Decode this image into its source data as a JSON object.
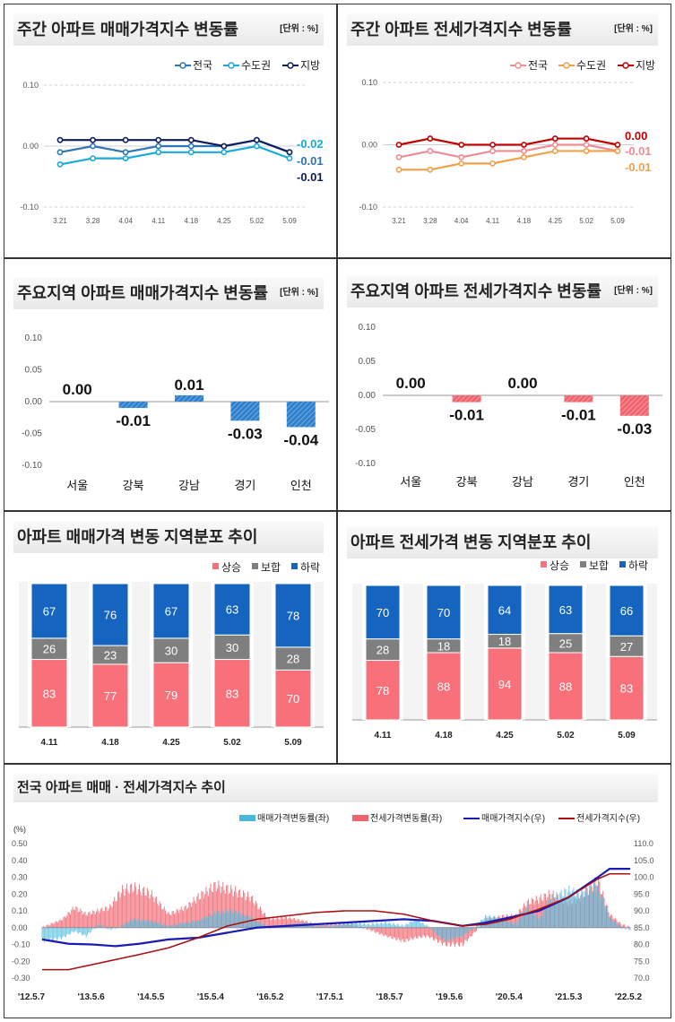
{
  "panels": {
    "p1": {
      "title": "주간 아파트 매매가격지수 변동률",
      "unit": "[단위 : %]"
    },
    "p2": {
      "title": "주간 아파트 전세가격지수 변동률",
      "unit": "[단위 : %]"
    },
    "p3": {
      "title": "주요지역 아파트 매매가격지수 변동률",
      "unit": "[단위 : %]"
    },
    "p4": {
      "title": "주요지역 아파트 전세가격지수 변동률",
      "unit": "[단위 : %]"
    },
    "p5": {
      "title": "아파트 매매가격 변동 지역분포 추이"
    },
    "p6": {
      "title": "아파트 전세가격 변동 지역분포 추이"
    },
    "p7": {
      "title": "전국 아파트 매매 · 전세가격지수 추이"
    }
  },
  "chart_data": [
    {
      "id": "weekly_sale",
      "type": "line",
      "title": "주간 아파트 매매가격지수 변동률",
      "unit": "[단위 : %]",
      "categories": [
        "3.21",
        "3.28",
        "4.04",
        "4.11",
        "4.18",
        "4.25",
        "5.02",
        "5.09"
      ],
      "ylim": [
        -0.1,
        0.1
      ],
      "yticks": [
        "0.10",
        "0.00",
        "-0.10"
      ],
      "series": [
        {
          "name": "전국",
          "color": "#2e75b6",
          "values": [
            -0.01,
            0.0,
            -0.01,
            0.0,
            0.0,
            0.0,
            0.01,
            -0.01
          ],
          "end_label": "-0.01"
        },
        {
          "name": "수도권",
          "color": "#19a9dc",
          "values": [
            -0.03,
            -0.02,
            -0.02,
            -0.01,
            -0.01,
            -0.01,
            0.0,
            -0.02
          ],
          "end_label": "-0.02"
        },
        {
          "name": "지방",
          "color": "#0d1f5c",
          "values": [
            0.01,
            0.01,
            0.01,
            0.01,
            0.01,
            0.0,
            0.01,
            -0.01
          ],
          "end_label": "-0.01"
        }
      ]
    },
    {
      "id": "weekly_jeonse",
      "type": "line",
      "title": "주간 아파트 전세가격지수 변동률",
      "unit": "[단위 : %]",
      "categories": [
        "3.21",
        "3.28",
        "4.04",
        "4.11",
        "4.18",
        "4.25",
        "5.02",
        "5.09"
      ],
      "ylim": [
        -0.1,
        0.1
      ],
      "yticks": [
        "0.10",
        "0.00",
        "-0.10"
      ],
      "series": [
        {
          "name": "전국",
          "color": "#f08a94",
          "values": [
            -0.02,
            -0.01,
            -0.02,
            -0.01,
            -0.01,
            0.0,
            0.0,
            -0.01
          ],
          "end_label": "-0.01"
        },
        {
          "name": "수도권",
          "color": "#f0a04b",
          "values": [
            -0.04,
            -0.04,
            -0.03,
            -0.03,
            -0.02,
            -0.01,
            -0.01,
            -0.01
          ],
          "end_label": "-0.01"
        },
        {
          "name": "지방",
          "color": "#c00000",
          "values": [
            0.0,
            0.01,
            0.0,
            0.0,
            0.0,
            0.01,
            0.01,
            0.0
          ],
          "end_label": "0.00"
        }
      ]
    },
    {
      "id": "region_sale",
      "type": "bar",
      "title": "주요지역 아파트 매매가격지수 변동률",
      "unit": "[단위 : %]",
      "categories": [
        "서울",
        "강북",
        "강남",
        "경기",
        "인천"
      ],
      "values": [
        0.0,
        -0.01,
        0.01,
        -0.03,
        -0.04
      ],
      "labels": [
        "0.00",
        "-0.01",
        "0.01",
        "-0.03",
        "-0.04"
      ],
      "ylim": [
        -0.1,
        0.1
      ],
      "yticks": [
        "0.10",
        "0.05",
        "0.00",
        "-0.05",
        "-0.10"
      ],
      "color": "#2e80cc"
    },
    {
      "id": "region_jeonse",
      "type": "bar",
      "title": "주요지역 아파트 전세가격지수 변동률",
      "unit": "[단위 : %]",
      "categories": [
        "서울",
        "강북",
        "강남",
        "경기",
        "인천"
      ],
      "values": [
        0.0,
        -0.01,
        0.0,
        -0.01,
        -0.03
      ],
      "labels": [
        "0.00",
        "-0.01",
        "0.00",
        "-0.01",
        "-0.03"
      ],
      "ylim": [
        -0.1,
        0.1
      ],
      "yticks": [
        "0.10",
        "0.05",
        "0.00",
        "-0.05",
        "-0.10"
      ],
      "color": "#f0646e"
    },
    {
      "id": "dist_sale",
      "type": "bar",
      "stacked": true,
      "title": "아파트 매매가격 변동 지역분포 추이",
      "categories": [
        "4.11",
        "4.18",
        "4.25",
        "5.02",
        "5.09"
      ],
      "series": [
        {
          "name": "상승",
          "color": "#f7707a",
          "values": [
            83,
            77,
            79,
            83,
            70
          ]
        },
        {
          "name": "보합",
          "color": "#7f7f7f",
          "values": [
            26,
            23,
            30,
            30,
            28
          ]
        },
        {
          "name": "하락",
          "color": "#1565c0",
          "values": [
            67,
            76,
            67,
            63,
            78
          ]
        }
      ]
    },
    {
      "id": "dist_jeonse",
      "type": "bar",
      "stacked": true,
      "title": "아파트 전세가격 변동 지역분포 추이",
      "categories": [
        "4.11",
        "4.18",
        "4.25",
        "5.02",
        "5.09"
      ],
      "series": [
        {
          "name": "상승",
          "color": "#f7707a",
          "values": [
            78,
            88,
            94,
            88,
            83
          ]
        },
        {
          "name": "보합",
          "color": "#7f7f7f",
          "values": [
            28,
            18,
            18,
            25,
            27
          ]
        },
        {
          "name": "하락",
          "color": "#1565c0",
          "values": [
            70,
            70,
            64,
            63,
            66
          ]
        }
      ]
    },
    {
      "id": "index_trend",
      "type": "line",
      "title": "전국 아파트 매매 · 전세가격지수 추이",
      "left_unit": "(%)",
      "left_ylim": [
        -0.3,
        0.5
      ],
      "left_ticks": [
        "0.50",
        "0.40",
        "0.30",
        "0.20",
        "0.10",
        "0.00",
        "-0.10",
        "-0.20",
        "-0.30"
      ],
      "right_ylim": [
        70.0,
        110.0
      ],
      "right_ticks": [
        "110.0",
        "105.0",
        "100.0",
        "95.0",
        "90.0",
        "85.0",
        "80.0",
        "75.0",
        "70.0"
      ],
      "x_ticks": [
        "'12.5.7",
        "'13.5.6",
        "'14.5.5",
        "'15.5.4",
        "'16.5.2",
        "'17.5.1",
        "'18.5.7",
        "'19.5.6",
        "'20.5.4",
        "'21.5.3",
        "'22.5.2"
      ],
      "x_range": [
        2012.35,
        2022.35
      ],
      "series": [
        {
          "name": "매매가격변동률(좌)",
          "type": "bar",
          "axis": "left",
          "color": "#4ab8dc",
          "points": [
            [
              2012.35,
              -0.08
            ],
            [
              2012.7,
              -0.06
            ],
            [
              2012.9,
              -0.02
            ],
            [
              2013.1,
              -0.05
            ],
            [
              2013.3,
              0.02
            ],
            [
              2013.5,
              -0.01
            ],
            [
              2013.7,
              0.01
            ],
            [
              2013.9,
              0.05
            ],
            [
              2014.2,
              0.04
            ],
            [
              2014.5,
              0.01
            ],
            [
              2014.8,
              0.03
            ],
            [
              2015.0,
              0.04
            ],
            [
              2015.3,
              0.09
            ],
            [
              2015.6,
              0.1
            ],
            [
              2015.9,
              0.06
            ],
            [
              2016.2,
              0.0
            ],
            [
              2016.5,
              0.01
            ],
            [
              2016.8,
              0.03
            ],
            [
              2017.0,
              0.01
            ],
            [
              2017.3,
              0.01
            ],
            [
              2017.6,
              0.03
            ],
            [
              2017.9,
              0.02
            ],
            [
              2018.2,
              0.03
            ],
            [
              2018.5,
              0.01
            ],
            [
              2018.7,
              0.05
            ],
            [
              2018.9,
              0.01
            ],
            [
              2019.2,
              -0.08
            ],
            [
              2019.5,
              -0.05
            ],
            [
              2019.7,
              0.0
            ],
            [
              2019.9,
              0.07
            ],
            [
              2020.2,
              0.05
            ],
            [
              2020.4,
              0.02
            ],
            [
              2020.6,
              0.12
            ],
            [
              2020.8,
              0.05
            ],
            [
              2021.0,
              0.17
            ],
            [
              2021.3,
              0.22
            ],
            [
              2021.5,
              0.2
            ],
            [
              2021.8,
              0.25
            ],
            [
              2022.0,
              0.06
            ],
            [
              2022.2,
              0.0
            ],
            [
              2022.35,
              -0.01
            ]
          ]
        },
        {
          "name": "전세가격변동률(좌)",
          "type": "bar",
          "axis": "left",
          "color": "#f0646e",
          "points": [
            [
              2012.35,
              0.0
            ],
            [
              2012.7,
              0.05
            ],
            [
              2012.9,
              0.12
            ],
            [
              2013.1,
              0.08
            ],
            [
              2013.3,
              0.1
            ],
            [
              2013.5,
              0.12
            ],
            [
              2013.7,
              0.22
            ],
            [
              2013.9,
              0.24
            ],
            [
              2014.2,
              0.2
            ],
            [
              2014.5,
              0.08
            ],
            [
              2014.8,
              0.12
            ],
            [
              2015.0,
              0.18
            ],
            [
              2015.3,
              0.25
            ],
            [
              2015.6,
              0.22
            ],
            [
              2015.9,
              0.18
            ],
            [
              2016.2,
              0.05
            ],
            [
              2016.5,
              0.06
            ],
            [
              2016.8,
              0.04
            ],
            [
              2017.0,
              0.02
            ],
            [
              2017.3,
              0.02
            ],
            [
              2017.6,
              0.02
            ],
            [
              2017.9,
              -0.01
            ],
            [
              2018.2,
              -0.05
            ],
            [
              2018.5,
              -0.08
            ],
            [
              2018.7,
              -0.06
            ],
            [
              2018.9,
              -0.05
            ],
            [
              2019.2,
              -0.1
            ],
            [
              2019.5,
              -0.1
            ],
            [
              2019.7,
              -0.03
            ],
            [
              2019.9,
              0.05
            ],
            [
              2020.2,
              0.07
            ],
            [
              2020.4,
              0.07
            ],
            [
              2020.6,
              0.15
            ],
            [
              2020.8,
              0.17
            ],
            [
              2021.0,
              0.2
            ],
            [
              2021.3,
              0.15
            ],
            [
              2021.5,
              0.18
            ],
            [
              2021.8,
              0.28
            ],
            [
              2022.0,
              0.08
            ],
            [
              2022.2,
              0.02
            ],
            [
              2022.35,
              0.0
            ]
          ]
        },
        {
          "name": "매매가격지수(우)",
          "type": "line",
          "axis": "right",
          "color": "#1a1ab4",
          "points": [
            [
              2012.35,
              81.5
            ],
            [
              2012.8,
              80.2
            ],
            [
              2013.2,
              80.0
            ],
            [
              2013.6,
              79.5
            ],
            [
              2014.0,
              80.2
            ],
            [
              2014.5,
              81.5
            ],
            [
              2015.0,
              82.0
            ],
            [
              2015.5,
              83.5
            ],
            [
              2016.0,
              85.0
            ],
            [
              2016.5,
              85.5
            ],
            [
              2017.0,
              86.0
            ],
            [
              2017.5,
              86.5
            ],
            [
              2018.0,
              87.0
            ],
            [
              2018.5,
              87.5
            ],
            [
              2019.0,
              87.0
            ],
            [
              2019.5,
              85.5
            ],
            [
              2019.9,
              86.5
            ],
            [
              2020.3,
              88.0
            ],
            [
              2020.8,
              90.0
            ],
            [
              2021.3,
              94.0
            ],
            [
              2021.8,
              100.0
            ],
            [
              2022.0,
              102.5
            ],
            [
              2022.35,
              102.5
            ]
          ]
        },
        {
          "name": "전세가격지수(우)",
          "type": "line",
          "axis": "right",
          "color": "#a81010",
          "points": [
            [
              2012.35,
              72.5
            ],
            [
              2012.8,
              72.5
            ],
            [
              2013.2,
              74.0
            ],
            [
              2013.6,
              75.5
            ],
            [
              2014.0,
              77.0
            ],
            [
              2014.5,
              79.0
            ],
            [
              2015.0,
              82.0
            ],
            [
              2015.5,
              85.5
            ],
            [
              2016.0,
              87.5
            ],
            [
              2016.5,
              88.5
            ],
            [
              2017.0,
              89.5
            ],
            [
              2017.5,
              90.0
            ],
            [
              2018.0,
              90.0
            ],
            [
              2018.5,
              89.0
            ],
            [
              2019.0,
              87.0
            ],
            [
              2019.5,
              85.5
            ],
            [
              2019.9,
              86.0
            ],
            [
              2020.3,
              87.5
            ],
            [
              2020.8,
              90.5
            ],
            [
              2021.3,
              94.0
            ],
            [
              2021.8,
              99.5
            ],
            [
              2022.0,
              101.0
            ],
            [
              2022.35,
              101.0
            ]
          ]
        }
      ]
    }
  ]
}
